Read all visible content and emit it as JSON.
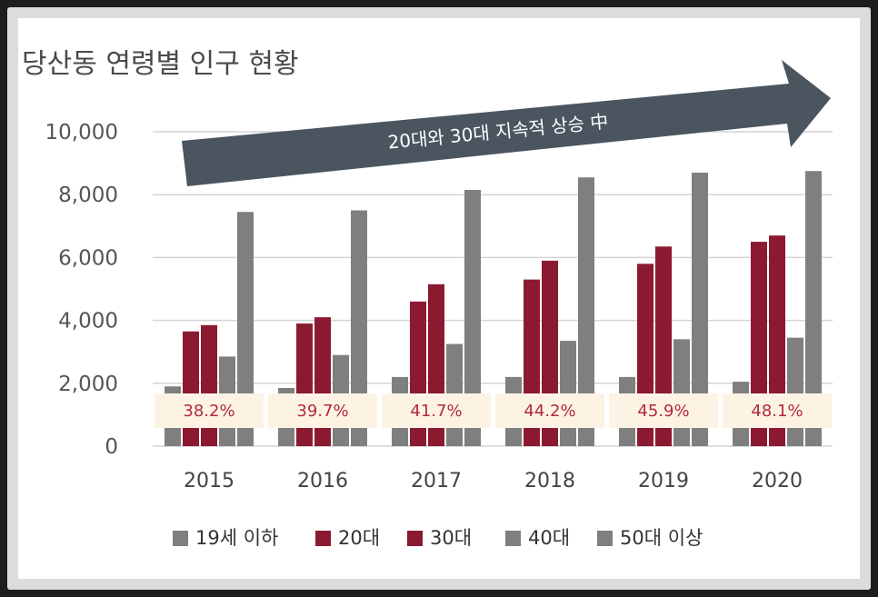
{
  "chart_data": {
    "type": "bar",
    "title": "당산동 연령별 인구 현황",
    "categories": [
      "2015",
      "2016",
      "2017",
      "2018",
      "2019",
      "2020"
    ],
    "series": [
      {
        "name": "19세 이하",
        "color": "#7f7f7f",
        "values": [
          1900,
          1850,
          2200,
          2200,
          2200,
          2050
        ]
      },
      {
        "name": "20대",
        "color": "#8b1a30",
        "values": [
          3650,
          3900,
          4600,
          5300,
          5800,
          6500
        ]
      },
      {
        "name": "30대",
        "color": "#8b1a30",
        "values": [
          3850,
          4100,
          5150,
          5900,
          6350,
          6700
        ]
      },
      {
        "name": "40대",
        "color": "#7f7f7f",
        "values": [
          2850,
          2900,
          3250,
          3350,
          3400,
          3450
        ]
      },
      {
        "name": "50대 이상",
        "color": "#7f7f7f",
        "values": [
          7450,
          7500,
          8150,
          8550,
          8700,
          8750
        ]
      }
    ],
    "share_labels": [
      "38.2%",
      "39.7%",
      "41.7%",
      "44.2%",
      "45.9%",
      "48.1%"
    ],
    "annotation": "20대와 30대 지속적 상승 中",
    "yticks": [
      "0",
      "2,000",
      "4,000",
      "6,000",
      "8,000",
      "10,000"
    ],
    "ylim": [
      0,
      10000
    ],
    "grid": true,
    "legend_position": "bottom"
  }
}
